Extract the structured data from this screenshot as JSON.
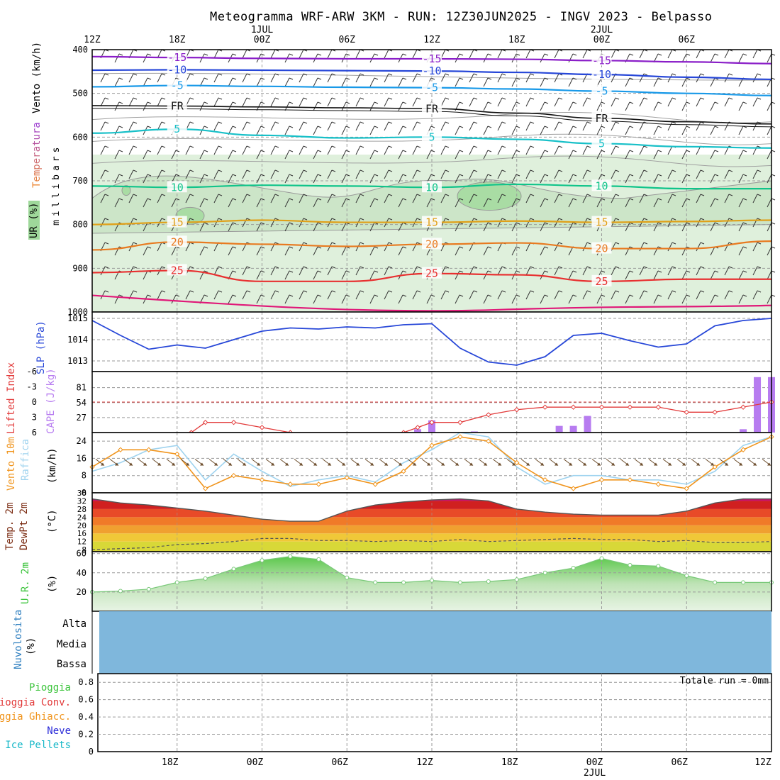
{
  "title": "Meteogramma WRF-ARW 3KM - RUN: 12Z30JUN2025 - INGV 2023 - Belpasso",
  "colors": {
    "frame": "#000000",
    "grid": "#9a9a9a",
    "humidity_fill": "#dff0dc",
    "humidity_fill_mid": "#cce5c8",
    "humidity_fill_high": "#a9dca4",
    "slp_line": "#2747d8",
    "lifted_index": "#e23a3a",
    "cape": "#b77cf0",
    "wind10": "#f0941c",
    "gust": "#9fd3ef",
    "arrows": "#6b4b2a",
    "temp_line": "#555555",
    "dewpoint_line": "#555555",
    "rh_line": "#78c878",
    "rh_fill": "#bde3b5",
    "cloud": "#7fb7dc",
    "rain_label": "#3cc43c",
    "conv_label": "#e23a3a",
    "ice_label": "#f0941c",
    "snow_label": "#2b2bd8",
    "pellets_label": "#18b8c8"
  },
  "time_axis": {
    "top_labels": [
      "12Z",
      "18Z",
      "00Z",
      "06Z",
      "12Z",
      "18Z",
      "00Z",
      "06Z"
    ],
    "top_date_labels": [
      {
        "at": "00Z",
        "label": "1JUL"
      },
      {
        "at": "00Z",
        "label": "2JUL"
      }
    ],
    "bottom_labels": [
      "18Z",
      "00Z",
      "06Z",
      "12Z",
      "18Z",
      "00Z",
      "06Z",
      "12Z"
    ],
    "bottom_date_label": "2JUL"
  },
  "panels": {
    "upper_air": {
      "ylabel_wind": "Vento (km/h)",
      "ylabel_temp": "Temperatura",
      "ylabel_rh": "UR (%)",
      "ylabel_mb": "millibars",
      "yticks": [
        "400",
        "500",
        "600",
        "700",
        "800",
        "900",
        "1000"
      ]
    },
    "slp": {
      "ylabel": "SLP (hPa)",
      "yticks": [
        "1015",
        "1014",
        "1013"
      ]
    },
    "instability": {
      "ylabel_li": "Lifted Index",
      "ylabel_cape": "CAPE (J/kg)",
      "li_ticks": [
        "-6",
        "-3",
        "0",
        "3",
        "6"
      ],
      "cape_ticks": [
        "81",
        "54",
        "27"
      ]
    },
    "wind10": {
      "ylabel_wind": "Vento 10m",
      "ylabel_gust": "Raffica",
      "ylabel_unit": "(km/h)",
      "yticks": [
        "24",
        "16",
        "8",
        "0"
      ]
    },
    "temp2m": {
      "ylabel_temp": "Temp. 2m",
      "ylabel_dew": "DewPt 2m",
      "ylabel_unit": "(°C)",
      "yticks": [
        "36",
        "32",
        "28",
        "24",
        "20",
        "16",
        "12",
        "8"
      ]
    },
    "rh2m": {
      "ylabel": "U.R. 2m",
      "ylabel_unit": "(%)",
      "yticks": [
        "60",
        "40",
        "20"
      ]
    },
    "clouds": {
      "ylabel": "Nuvolosita",
      "ylabel_unit": "(%)",
      "levels": [
        "Alta",
        "Media",
        "Bassa"
      ]
    },
    "precip": {
      "total_label": "Totale run = 0mm",
      "yticks": [
        "0.8",
        "0.6",
        "0.4",
        "0.2",
        "0"
      ],
      "legend": [
        "Pioggia",
        "Pioggia Conv.",
        "Pioggia Ghiacc.",
        "Neve",
        "Ice Pellets"
      ]
    }
  },
  "chart_data": [
    {
      "type": "line",
      "title": "",
      "note_levels": "isotherm contours over pressure (mb) vs time; RH shaded",
      "ylim": [
        1000,
        400
      ],
      "x": [
        "12Z",
        "18Z",
        "00Z",
        "06Z",
        "12Z",
        "18Z",
        "00Z",
        "06Z",
        "12Z"
      ],
      "series": [
        {
          "name": "-15",
          "values": [
            416,
            418,
            420,
            421,
            421,
            422,
            425,
            428,
            432
          ]
        },
        {
          "name": "-10",
          "values": [
            447,
            446,
            447,
            448,
            449,
            452,
            457,
            463,
            468
          ]
        },
        {
          "name": "-5",
          "values": [
            485,
            482,
            484,
            486,
            487,
            490,
            495,
            500,
            505
          ]
        },
        {
          "name": "FR",
          "values": [
            528,
            529,
            531,
            533,
            535,
            545,
            557,
            565,
            570
          ]
        },
        {
          "name": "5",
          "values": [
            591,
            582,
            596,
            602,
            600,
            605,
            615,
            622,
            625
          ]
        },
        {
          "name": "10",
          "values": [
            712,
            715,
            710,
            712,
            715,
            708,
            712,
            718,
            718
          ]
        },
        {
          "name": "15",
          "values": [
            800,
            795,
            790,
            795,
            795,
            792,
            795,
            793,
            790
          ]
        },
        {
          "name": "20",
          "values": [
            858,
            840,
            845,
            850,
            845,
            842,
            855,
            855,
            838
          ]
        },
        {
          "name": "25",
          "values": [
            910,
            905,
            930,
            930,
            912,
            915,
            930,
            925,
            925
          ]
        }
      ]
    },
    {
      "type": "line",
      "title": "",
      "ylabel": "SLP (hPa)",
      "ylim": [
        1012.5,
        1015.3
      ],
      "x": [
        "12Z",
        "14Z",
        "16Z",
        "18Z",
        "20Z",
        "22Z",
        "00Z",
        "02Z",
        "04Z",
        "06Z",
        "08Z",
        "10Z",
        "12Z",
        "14Z",
        "16Z",
        "18Z",
        "20Z",
        "22Z",
        "00Z",
        "02Z",
        "04Z",
        "06Z",
        "08Z",
        "10Z",
        "12Z"
      ],
      "values": [
        1014.9,
        1014.2,
        1013.55,
        1013.75,
        1013.6,
        1014.0,
        1014.4,
        1014.55,
        1014.5,
        1014.6,
        1014.55,
        1014.7,
        1014.75,
        1013.6,
        1012.95,
        1012.8,
        1013.2,
        1014.2,
        1014.3,
        1013.95,
        1013.65,
        1013.8,
        1014.65,
        1014.9,
        1015.0
      ]
    },
    {
      "type": "bar",
      "title": "",
      "ylabel": "CAPE (J/kg)",
      "ylim": [
        0,
        110
      ],
      "x": [
        "11Z",
        "12Z",
        "15Z",
        "21Z",
        "22Z",
        "23Z",
        "10Z",
        "11Z",
        "12Z"
      ],
      "values": [
        6,
        22,
        2,
        12,
        12,
        30,
        6,
        100,
        100
      ]
    },
    {
      "type": "line",
      "title": "",
      "ylabel": "Lifted Index",
      "ylim": [
        6,
        -6
      ],
      "x": [
        "19Z",
        "20Z",
        "22Z",
        "00Z",
        "02Z",
        "10Z",
        "11Z",
        "12Z",
        "14Z",
        "16Z",
        "18Z",
        "20Z",
        "22Z",
        "00Z",
        "02Z",
        "04Z",
        "06Z",
        "08Z",
        "10Z",
        "12Z"
      ],
      "values": [
        6,
        4,
        4,
        5,
        6,
        6,
        5,
        4,
        4,
        2.5,
        1.5,
        1,
        1,
        1,
        1,
        1,
        2,
        2,
        1,
        0
      ]
    },
    {
      "type": "line",
      "title": "",
      "ylabel": "(km/h)",
      "ylim": [
        0,
        28
      ],
      "x": [
        "12Z",
        "14Z",
        "16Z",
        "18Z",
        "20Z",
        "22Z",
        "00Z",
        "02Z",
        "04Z",
        "06Z",
        "08Z",
        "10Z",
        "12Z",
        "14Z",
        "16Z",
        "18Z",
        "20Z",
        "22Z",
        "00Z",
        "02Z",
        "04Z",
        "06Z",
        "08Z",
        "10Z",
        "12Z"
      ],
      "series": [
        {
          "name": "Vento",
          "values": [
            12,
            20,
            20,
            18,
            2,
            8,
            6,
            4,
            4,
            7,
            4,
            10,
            22,
            26,
            24,
            14,
            6,
            2,
            6,
            6,
            4,
            2,
            12,
            20,
            26
          ]
        },
        {
          "name": "Raffica",
          "values": [
            10,
            14,
            20,
            22,
            6,
            18,
            10,
            3,
            6,
            8,
            5,
            14,
            20,
            28,
            26,
            12,
            4,
            8,
            8,
            6,
            6,
            4,
            10,
            22,
            26
          ]
        }
      ]
    },
    {
      "type": "area",
      "title": "",
      "ylabel": "(°C)",
      "ylim": [
        7,
        36
      ],
      "x": [
        "12Z",
        "14Z",
        "16Z",
        "18Z",
        "20Z",
        "22Z",
        "00Z",
        "02Z",
        "04Z",
        "06Z",
        "08Z",
        "10Z",
        "12Z",
        "14Z",
        "16Z",
        "18Z",
        "20Z",
        "22Z",
        "00Z",
        "02Z",
        "04Z",
        "06Z",
        "08Z",
        "10Z",
        "12Z"
      ],
      "series": [
        {
          "name": "Temp. 2m",
          "values": [
            33,
            31,
            30,
            28.5,
            27,
            25,
            23,
            22,
            22,
            27,
            30,
            31.5,
            32.5,
            33,
            32,
            28,
            26.5,
            25.5,
            25,
            25,
            25,
            27,
            31,
            33,
            33
          ]
        },
        {
          "name": "DewPt 2m",
          "values": [
            8,
            8.5,
            9,
            10.5,
            11,
            12,
            13.5,
            13.5,
            12.5,
            12.5,
            12,
            12.5,
            12,
            13,
            12,
            12.5,
            13,
            13.5,
            13,
            13,
            12,
            12.5,
            11.5,
            11.5,
            12
          ]
        }
      ]
    },
    {
      "type": "area",
      "title": "",
      "ylabel": "(%)",
      "ylim": [
        0,
        62
      ],
      "x": [
        "12Z",
        "14Z",
        "16Z",
        "18Z",
        "20Z",
        "22Z",
        "00Z",
        "02Z",
        "04Z",
        "06Z",
        "08Z",
        "10Z",
        "12Z",
        "14Z",
        "16Z",
        "18Z",
        "20Z",
        "22Z",
        "00Z",
        "02Z",
        "04Z",
        "06Z",
        "08Z",
        "10Z",
        "12Z"
      ],
      "values": [
        20,
        21,
        23,
        30,
        34,
        44,
        53,
        57,
        54,
        35,
        30,
        30,
        32,
        30,
        31,
        33,
        40,
        45,
        55,
        48,
        47,
        37,
        30,
        30,
        30
      ]
    },
    {
      "type": "bar",
      "title": "",
      "note": "Nuvolosita (%) high/medium/low cover — uniform",
      "categories": [
        "Alta",
        "Media",
        "Bassa"
      ],
      "values": [
        100,
        100,
        100
      ]
    },
    {
      "type": "bar",
      "title": "",
      "ylim": [
        0,
        0.9
      ],
      "categories": [
        "Pioggia",
        "Pioggia Conv.",
        "Pioggia Ghiacc.",
        "Neve",
        "Ice Pellets"
      ],
      "values": [
        0,
        0,
        0,
        0,
        0
      ]
    }
  ]
}
